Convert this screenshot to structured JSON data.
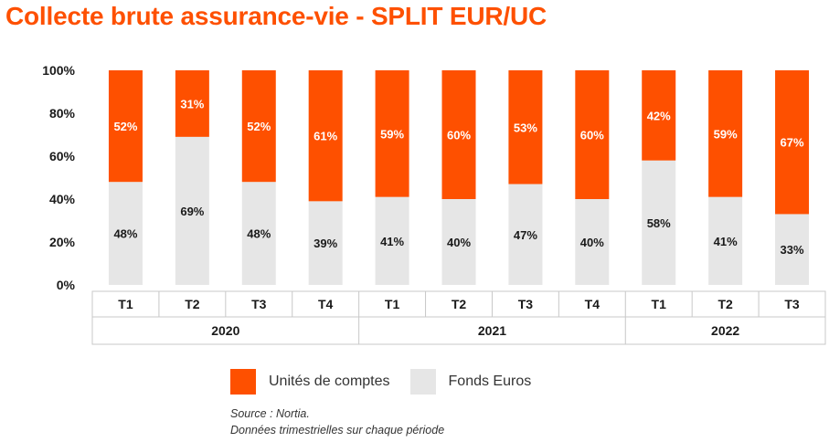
{
  "colors": {
    "accent": "#fe5000",
    "uc": "#fe5000",
    "euros": "#e6e6e6",
    "text": "#1a1a1a",
    "grid_border": "#c8c8c8"
  },
  "legend": {
    "items": [
      {
        "label": "Unités de comptes",
        "color": "#fe5000"
      },
      {
        "label": "Fonds Euros",
        "color": "#e6e6e6"
      }
    ]
  },
  "notes": {
    "source": "Source : Nortia.",
    "detail": "Données trimestrielles sur chaque période"
  },
  "chart_data": {
    "type": "bar",
    "stacked": true,
    "title": "Collecte brute assurance-vie - SPLIT EUR/UC",
    "ylim": [
      0,
      100
    ],
    "yticks": [
      "0%",
      "20%",
      "40%",
      "60%",
      "80%",
      "100%"
    ],
    "categories": [
      "T1",
      "T2",
      "T3",
      "T4",
      "T1",
      "T2",
      "T3",
      "T4",
      "T1",
      "T2",
      "T3"
    ],
    "groups": [
      {
        "label": "2020",
        "count": 4
      },
      {
        "label": "2021",
        "count": 4
      },
      {
        "label": "2022",
        "count": 3
      }
    ],
    "series": [
      {
        "name": "Fonds Euros",
        "color": "#e6e6e6",
        "values": [
          48,
          69,
          48,
          39,
          41,
          40,
          47,
          40,
          58,
          41,
          33
        ],
        "labels": [
          "48%",
          "69%",
          "48%",
          "39%",
          "41%",
          "40%",
          "47%",
          "40%",
          "58%",
          "41%",
          "33%"
        ]
      },
      {
        "name": "Unités de comptes",
        "color": "#fe5000",
        "values": [
          52,
          31,
          52,
          61,
          59,
          60,
          53,
          60,
          42,
          59,
          67
        ],
        "labels": [
          "52%",
          "31%",
          "52%",
          "61%",
          "59%",
          "60%",
          "53%",
          "60%",
          "42%",
          "59%",
          "67%"
        ]
      }
    ],
    "grid": false,
    "legend_position": "bottom"
  }
}
